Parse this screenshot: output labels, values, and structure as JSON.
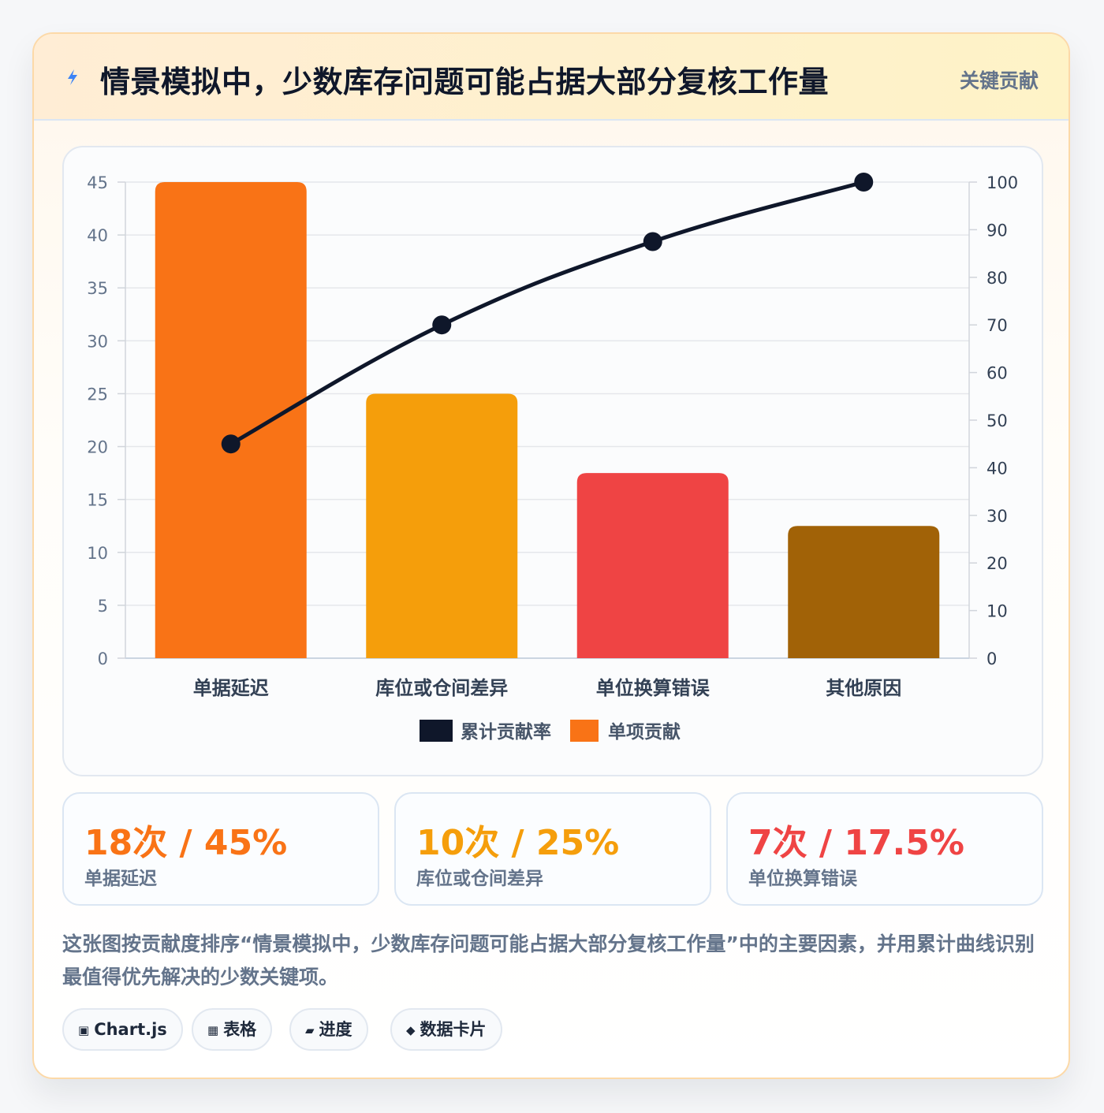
{
  "header": {
    "title": "情景模拟中，少数库存问题可能占据大部分复核工作量",
    "badge": "关键贡献",
    "icon": "lightning-icon"
  },
  "chart_data": {
    "type": "bar",
    "categories": [
      "单据延迟",
      "库位或仓间差异",
      "单位换算错误",
      "其他原因"
    ],
    "series": [
      {
        "name": "单项贡献",
        "type": "bar",
        "values": [
          45,
          25,
          17.5,
          12.5
        ],
        "colors": [
          "#f97316",
          "#f59e0b",
          "#ef4444",
          "#a16207"
        ],
        "axis": "left"
      },
      {
        "name": "累计贡献率",
        "type": "line",
        "values": [
          45,
          70,
          87.5,
          100
        ],
        "color": "#0f172a",
        "axis": "right"
      }
    ],
    "ylim_left": [
      0,
      45
    ],
    "yticks_left": [
      0,
      5,
      10,
      15,
      20,
      25,
      30,
      35,
      40,
      45
    ],
    "ylim_right": [
      0,
      100
    ],
    "yticks_right": [
      0,
      10,
      20,
      30,
      40,
      50,
      60,
      70,
      80,
      90,
      100
    ],
    "grid": true,
    "legend": [
      "累计贡献率",
      "单项贡献"
    ],
    "legend_position": "bottom"
  },
  "stats": [
    {
      "value": "18次 / 45%",
      "label": "单据延迟",
      "color": "#f97316"
    },
    {
      "value": "10次 / 25%",
      "label": "库位或仓间差异",
      "color": "#f59e0b"
    },
    {
      "value": "7次 / 17.5%",
      "label": "单位换算错误",
      "color": "#ef4444"
    }
  ],
  "description": "这张图按贡献度排序“情景模拟中，少数库存问题可能占据大部分复核工作量”中的主要因素，并用累计曲线识别最值得优先解决的少数关键项。",
  "chips": [
    {
      "icon": "▣",
      "label": "Chart.js"
    },
    {
      "icon": "▦",
      "label": "表格"
    },
    {
      "icon": "▰",
      "label": "进度"
    },
    {
      "icon": "◆",
      "label": "数据卡片"
    }
  ]
}
